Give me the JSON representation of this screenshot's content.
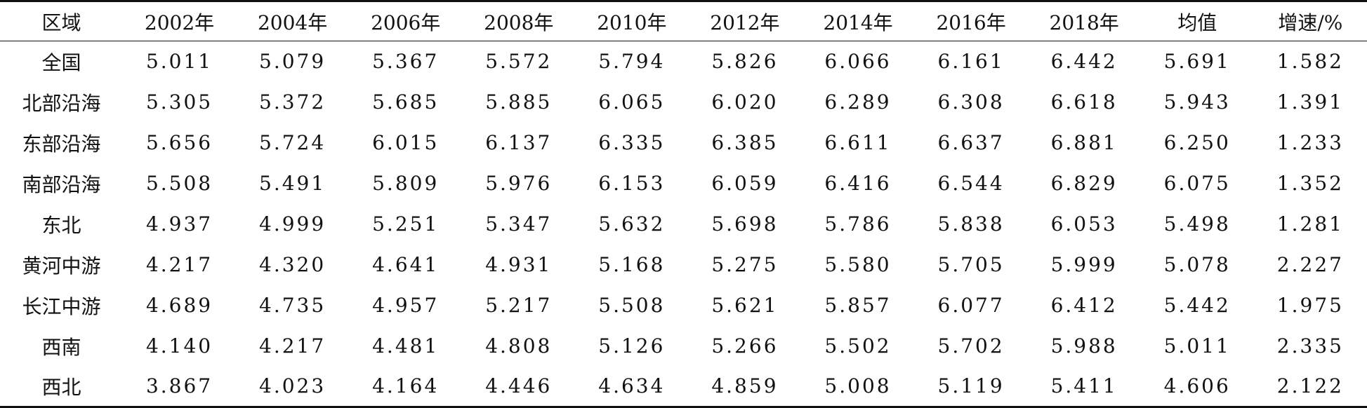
{
  "table": {
    "headers": [
      "区域",
      "2002年",
      "2004年",
      "2006年",
      "2008年",
      "2010年",
      "2012年",
      "2014年",
      "2016年",
      "2018年",
      "均值",
      "增速/%"
    ],
    "rows": [
      {
        "region": "全国",
        "values": [
          "5.011",
          "5.079",
          "5.367",
          "5.572",
          "5.794",
          "5.826",
          "6.066",
          "6.161",
          "6.442",
          "5.691",
          "1.582"
        ]
      },
      {
        "region": "北部沿海",
        "values": [
          "5.305",
          "5.372",
          "5.685",
          "5.885",
          "6.065",
          "6.020",
          "6.289",
          "6.308",
          "6.618",
          "5.943",
          "1.391"
        ]
      },
      {
        "region": "东部沿海",
        "values": [
          "5.656",
          "5.724",
          "6.015",
          "6.137",
          "6.335",
          "6.385",
          "6.611",
          "6.637",
          "6.881",
          "6.250",
          "1.233"
        ]
      },
      {
        "region": "南部沿海",
        "values": [
          "5.508",
          "5.491",
          "5.809",
          "5.976",
          "6.153",
          "6.059",
          "6.416",
          "6.544",
          "6.829",
          "6.075",
          "1.352"
        ]
      },
      {
        "region": "东北",
        "values": [
          "4.937",
          "4.999",
          "5.251",
          "5.347",
          "5.632",
          "5.698",
          "5.786",
          "5.838",
          "6.053",
          "5.498",
          "1.281"
        ]
      },
      {
        "region": "黄河中游",
        "values": [
          "4.217",
          "4.320",
          "4.641",
          "4.931",
          "5.168",
          "5.275",
          "5.580",
          "5.705",
          "5.999",
          "5.078",
          "2.227"
        ]
      },
      {
        "region": "长江中游",
        "values": [
          "4.689",
          "4.735",
          "4.957",
          "5.217",
          "5.508",
          "5.621",
          "5.857",
          "6.077",
          "6.412",
          "5.442",
          "1.975"
        ]
      },
      {
        "region": "西南",
        "values": [
          "4.140",
          "4.217",
          "4.481",
          "4.808",
          "5.126",
          "5.266",
          "5.502",
          "5.702",
          "5.988",
          "5.011",
          "2.335"
        ]
      },
      {
        "region": "西北",
        "values": [
          "3.867",
          "4.023",
          "4.164",
          "4.446",
          "4.634",
          "4.859",
          "5.008",
          "5.119",
          "5.411",
          "4.606",
          "2.122"
        ]
      }
    ]
  }
}
